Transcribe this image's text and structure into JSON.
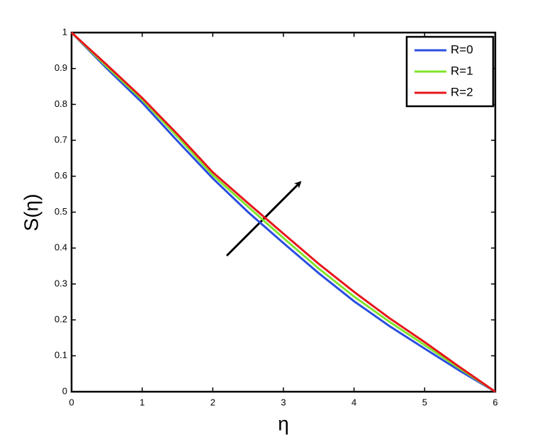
{
  "chart_data": {
    "type": "line",
    "xlabel": "η",
    "ylabel": "S(η)",
    "x": [
      0,
      0.5,
      1,
      1.5,
      2,
      2.5,
      3,
      3.5,
      4,
      4.5,
      5,
      5.5,
      6
    ],
    "series": [
      {
        "name": "R=0",
        "color": "#2b4ee0",
        "values": [
          1,
          0.9,
          0.805,
          0.698,
          0.594,
          0.5,
          0.414,
          0.33,
          0.252,
          0.183,
          0.12,
          0.058,
          0
        ]
      },
      {
        "name": "R=1",
        "color": "#7fe52a",
        "values": [
          1,
          0.905,
          0.813,
          0.71,
          0.603,
          0.515,
          0.428,
          0.343,
          0.265,
          0.195,
          0.13,
          0.064,
          0
        ]
      },
      {
        "name": "R=2",
        "color": "#e8141b",
        "values": [
          1,
          0.91,
          0.818,
          0.717,
          0.611,
          0.525,
          0.44,
          0.356,
          0.278,
          0.205,
          0.138,
          0.068,
          0
        ]
      }
    ],
    "xlim": [
      0,
      6
    ],
    "xticks": [
      0,
      1,
      2,
      3,
      4,
      5,
      6
    ],
    "ylim": [
      0,
      1
    ],
    "yticks": [
      0,
      0.1,
      0.2,
      0.3,
      0.4,
      0.5,
      0.6,
      0.7,
      0.8,
      0.9,
      1
    ],
    "grid": false,
    "legend": "top-right"
  }
}
